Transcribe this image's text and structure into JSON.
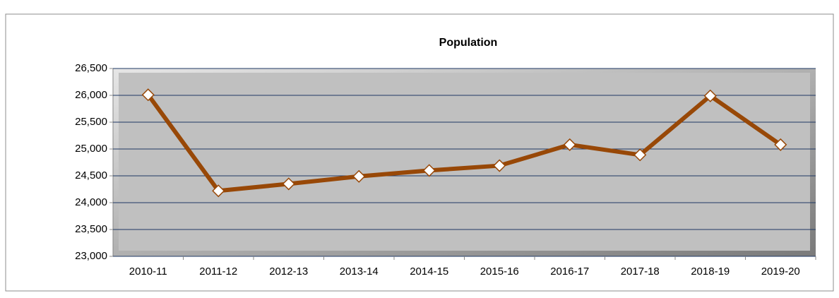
{
  "chart_data": {
    "type": "line",
    "title": "Population",
    "categories": [
      "2010-11",
      "2011-12",
      "2012-13",
      "2013-14",
      "2014-15",
      "2015-16",
      "2016-17",
      "2017-18",
      "2018-19",
      "2019-20"
    ],
    "series": [
      {
        "name": "Population",
        "color": "#984807",
        "values": [
          26010,
          24220,
          24350,
          24490,
          24600,
          24690,
          25080,
          24890,
          25990,
          25080
        ]
      }
    ],
    "ylim": [
      23000,
      26500
    ],
    "yticks": [
      {
        "value": 23000,
        "label": "23,000"
      },
      {
        "value": 23500,
        "label": "23,500"
      },
      {
        "value": 24000,
        "label": "24,000"
      },
      {
        "value": 24500,
        "label": "24,500"
      },
      {
        "value": 25000,
        "label": "25,000"
      },
      {
        "value": 25500,
        "label": "25,500"
      },
      {
        "value": 26000,
        "label": "26,000"
      },
      {
        "value": 26500,
        "label": "26,500"
      }
    ],
    "grid": true,
    "legend": false
  }
}
